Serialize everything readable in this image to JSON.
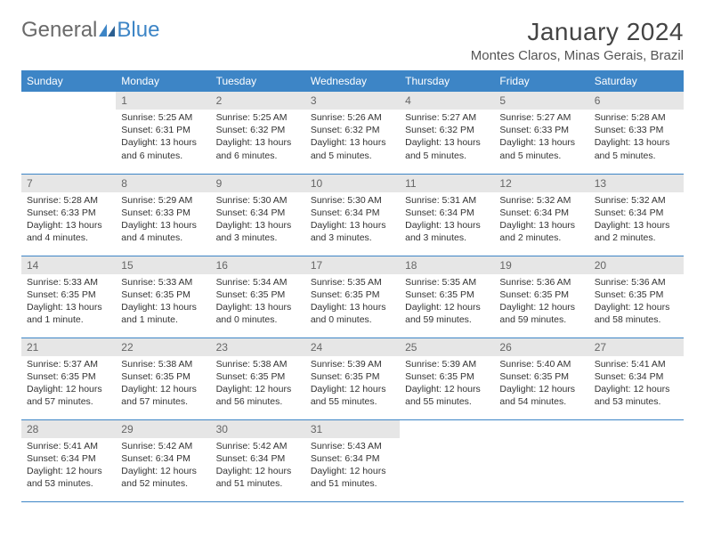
{
  "brand": {
    "part1": "General",
    "part2": "Blue"
  },
  "title": "January 2024",
  "location": "Montes Claros, Minas Gerais, Brazil",
  "colors": {
    "header_bg": "#3d85c6",
    "header_fg": "#ffffff",
    "daynum_bg": "#e6e6e6",
    "daynum_fg": "#666666",
    "rule": "#3d85c6",
    "text": "#333333",
    "logo_gray": "#6a6a6a",
    "logo_blue": "#3d85c6",
    "background": "#ffffff"
  },
  "typography": {
    "title_fontsize": 28,
    "location_fontsize": 15,
    "dayhead_fontsize": 12,
    "body_fontsize": 10.5,
    "logo_fontsize": 24
  },
  "weekdays": [
    "Sunday",
    "Monday",
    "Tuesday",
    "Wednesday",
    "Thursday",
    "Friday",
    "Saturday"
  ],
  "layout": {
    "first_weekday_offset": 1,
    "days_in_month": 31
  },
  "days": [
    {
      "n": 1,
      "sunrise": "5:25 AM",
      "sunset": "6:31 PM",
      "daylight": "13 hours and 6 minutes."
    },
    {
      "n": 2,
      "sunrise": "5:25 AM",
      "sunset": "6:32 PM",
      "daylight": "13 hours and 6 minutes."
    },
    {
      "n": 3,
      "sunrise": "5:26 AM",
      "sunset": "6:32 PM",
      "daylight": "13 hours and 5 minutes."
    },
    {
      "n": 4,
      "sunrise": "5:27 AM",
      "sunset": "6:32 PM",
      "daylight": "13 hours and 5 minutes."
    },
    {
      "n": 5,
      "sunrise": "5:27 AM",
      "sunset": "6:33 PM",
      "daylight": "13 hours and 5 minutes."
    },
    {
      "n": 6,
      "sunrise": "5:28 AM",
      "sunset": "6:33 PM",
      "daylight": "13 hours and 5 minutes."
    },
    {
      "n": 7,
      "sunrise": "5:28 AM",
      "sunset": "6:33 PM",
      "daylight": "13 hours and 4 minutes."
    },
    {
      "n": 8,
      "sunrise": "5:29 AM",
      "sunset": "6:33 PM",
      "daylight": "13 hours and 4 minutes."
    },
    {
      "n": 9,
      "sunrise": "5:30 AM",
      "sunset": "6:34 PM",
      "daylight": "13 hours and 3 minutes."
    },
    {
      "n": 10,
      "sunrise": "5:30 AM",
      "sunset": "6:34 PM",
      "daylight": "13 hours and 3 minutes."
    },
    {
      "n": 11,
      "sunrise": "5:31 AM",
      "sunset": "6:34 PM",
      "daylight": "13 hours and 3 minutes."
    },
    {
      "n": 12,
      "sunrise": "5:32 AM",
      "sunset": "6:34 PM",
      "daylight": "13 hours and 2 minutes."
    },
    {
      "n": 13,
      "sunrise": "5:32 AM",
      "sunset": "6:34 PM",
      "daylight": "13 hours and 2 minutes."
    },
    {
      "n": 14,
      "sunrise": "5:33 AM",
      "sunset": "6:35 PM",
      "daylight": "13 hours and 1 minute."
    },
    {
      "n": 15,
      "sunrise": "5:33 AM",
      "sunset": "6:35 PM",
      "daylight": "13 hours and 1 minute."
    },
    {
      "n": 16,
      "sunrise": "5:34 AM",
      "sunset": "6:35 PM",
      "daylight": "13 hours and 0 minutes."
    },
    {
      "n": 17,
      "sunrise": "5:35 AM",
      "sunset": "6:35 PM",
      "daylight": "13 hours and 0 minutes."
    },
    {
      "n": 18,
      "sunrise": "5:35 AM",
      "sunset": "6:35 PM",
      "daylight": "12 hours and 59 minutes."
    },
    {
      "n": 19,
      "sunrise": "5:36 AM",
      "sunset": "6:35 PM",
      "daylight": "12 hours and 59 minutes."
    },
    {
      "n": 20,
      "sunrise": "5:36 AM",
      "sunset": "6:35 PM",
      "daylight": "12 hours and 58 minutes."
    },
    {
      "n": 21,
      "sunrise": "5:37 AM",
      "sunset": "6:35 PM",
      "daylight": "12 hours and 57 minutes."
    },
    {
      "n": 22,
      "sunrise": "5:38 AM",
      "sunset": "6:35 PM",
      "daylight": "12 hours and 57 minutes."
    },
    {
      "n": 23,
      "sunrise": "5:38 AM",
      "sunset": "6:35 PM",
      "daylight": "12 hours and 56 minutes."
    },
    {
      "n": 24,
      "sunrise": "5:39 AM",
      "sunset": "6:35 PM",
      "daylight": "12 hours and 55 minutes."
    },
    {
      "n": 25,
      "sunrise": "5:39 AM",
      "sunset": "6:35 PM",
      "daylight": "12 hours and 55 minutes."
    },
    {
      "n": 26,
      "sunrise": "5:40 AM",
      "sunset": "6:35 PM",
      "daylight": "12 hours and 54 minutes."
    },
    {
      "n": 27,
      "sunrise": "5:41 AM",
      "sunset": "6:34 PM",
      "daylight": "12 hours and 53 minutes."
    },
    {
      "n": 28,
      "sunrise": "5:41 AM",
      "sunset": "6:34 PM",
      "daylight": "12 hours and 53 minutes."
    },
    {
      "n": 29,
      "sunrise": "5:42 AM",
      "sunset": "6:34 PM",
      "daylight": "12 hours and 52 minutes."
    },
    {
      "n": 30,
      "sunrise": "5:42 AM",
      "sunset": "6:34 PM",
      "daylight": "12 hours and 51 minutes."
    },
    {
      "n": 31,
      "sunrise": "5:43 AM",
      "sunset": "6:34 PM",
      "daylight": "12 hours and 51 minutes."
    }
  ],
  "labels": {
    "sunrise": "Sunrise:",
    "sunset": "Sunset:",
    "daylight": "Daylight:"
  }
}
